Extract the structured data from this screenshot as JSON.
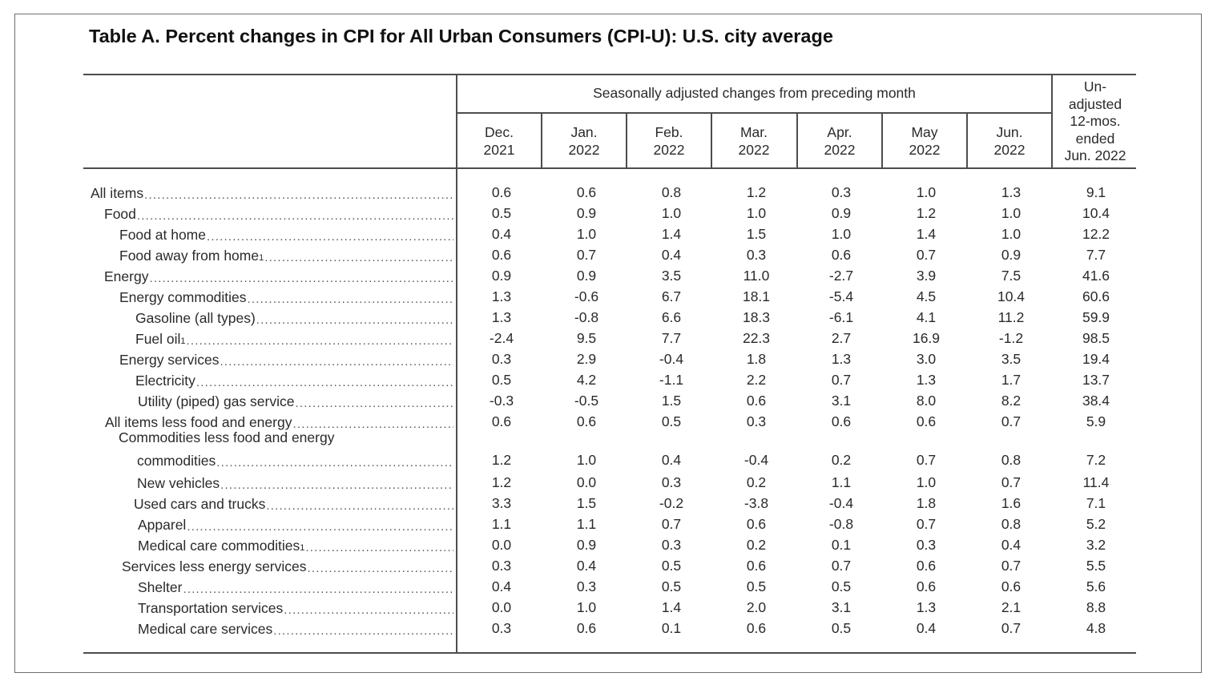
{
  "title": "Table A. Percent changes in CPI for All Urban Consumers (CPI-U): U.S. city average",
  "header": {
    "group_label": "Seasonally adjusted changes from preceding month",
    "columns": [
      {
        "line1": "Dec.",
        "line2": "2021"
      },
      {
        "line1": "Jan.",
        "line2": "2022"
      },
      {
        "line1": "Feb.",
        "line2": "2022"
      },
      {
        "line1": "Mar.",
        "line2": "2022"
      },
      {
        "line1": "Apr.",
        "line2": "2022"
      },
      {
        "line1": "May",
        "line2": "2022"
      },
      {
        "line1": "Jun.",
        "line2": "2022"
      }
    ],
    "last_column": [
      "Un-",
      "adjusted",
      "12-mos.",
      "ended",
      "Jun. 2022"
    ]
  },
  "rows": [
    {
      "label": "All items",
      "sup": "",
      "values": [
        "0.6",
        "0.6",
        "0.8",
        "1.2",
        "0.3",
        "1.0",
        "1.3",
        "9.1"
      ]
    },
    {
      "label": "Food",
      "sup": "",
      "values": [
        "0.5",
        "0.9",
        "1.0",
        "1.0",
        "0.9",
        "1.2",
        "1.0",
        "10.4"
      ]
    },
    {
      "label": "Food at home",
      "sup": "",
      "values": [
        "0.4",
        "1.0",
        "1.4",
        "1.5",
        "1.0",
        "1.4",
        "1.0",
        "12.2"
      ]
    },
    {
      "label": "Food away from home",
      "sup": "1",
      "values": [
        "0.6",
        "0.7",
        "0.4",
        "0.3",
        "0.6",
        "0.7",
        "0.9",
        "7.7"
      ]
    },
    {
      "label": "Energy",
      "sup": "",
      "values": [
        "0.9",
        "0.9",
        "3.5",
        "11.0",
        "-2.7",
        "3.9",
        "7.5",
        "41.6"
      ]
    },
    {
      "label": "Energy commodities",
      "sup": "",
      "values": [
        "1.3",
        "-0.6",
        "6.7",
        "18.1",
        "-5.4",
        "4.5",
        "10.4",
        "60.6"
      ]
    },
    {
      "label": "Gasoline (all types)",
      "sup": "",
      "values": [
        "1.3",
        "-0.8",
        "6.6",
        "18.3",
        "-6.1",
        "4.1",
        "11.2",
        "59.9"
      ]
    },
    {
      "label": "Fuel oil",
      "sup": "1",
      "values": [
        "-2.4",
        "9.5",
        "7.7",
        "22.3",
        "2.7",
        "16.9",
        "-1.2",
        "98.5"
      ]
    },
    {
      "label": "Energy services",
      "sup": "",
      "values": [
        "0.3",
        "2.9",
        "-0.4",
        "1.8",
        "1.3",
        "3.0",
        "3.5",
        "19.4"
      ]
    },
    {
      "label": "Electricity",
      "sup": "",
      "values": [
        "0.5",
        "4.2",
        "-1.1",
        "2.2",
        "0.7",
        "1.3",
        "1.7",
        "13.7"
      ]
    },
    {
      "label": "Utility (piped) gas service",
      "sup": "",
      "values": [
        "-0.3",
        "-0.5",
        "1.5",
        "0.6",
        "3.1",
        "8.0",
        "8.2",
        "38.4"
      ]
    },
    {
      "label": "All items less food and energy",
      "sup": "",
      "values": [
        "0.6",
        "0.6",
        "0.5",
        "0.3",
        "0.6",
        "0.6",
        "0.7",
        "5.9"
      ]
    },
    {
      "label_line1": "Commodities less food and energy",
      "label": "commodities",
      "sup": "",
      "values": [
        "1.2",
        "1.0",
        "0.4",
        "-0.4",
        "0.2",
        "0.7",
        "0.8",
        "7.2"
      ]
    },
    {
      "label": "New vehicles",
      "sup": "",
      "values": [
        "1.2",
        "0.0",
        "0.3",
        "0.2",
        "1.1",
        "1.0",
        "0.7",
        "11.4"
      ]
    },
    {
      "label": "Used cars and trucks",
      "sup": "",
      "values": [
        "3.3",
        "1.5",
        "-0.2",
        "-3.8",
        "-0.4",
        "1.8",
        "1.6",
        "7.1"
      ]
    },
    {
      "label": "Apparel",
      "sup": "",
      "values": [
        "1.1",
        "1.1",
        "0.7",
        "0.6",
        "-0.8",
        "0.7",
        "0.8",
        "5.2"
      ]
    },
    {
      "label": "Medical care commodities",
      "sup": "1",
      "values": [
        "0.0",
        "0.9",
        "0.3",
        "0.2",
        "0.1",
        "0.3",
        "0.4",
        "3.2"
      ]
    },
    {
      "label": "Services less energy services",
      "sup": "",
      "values": [
        "0.3",
        "0.4",
        "0.5",
        "0.6",
        "0.7",
        "0.6",
        "0.7",
        "5.5"
      ]
    },
    {
      "label": "Shelter",
      "sup": "",
      "values": [
        "0.4",
        "0.3",
        "0.5",
        "0.5",
        "0.5",
        "0.6",
        "0.6",
        "5.6"
      ]
    },
    {
      "label": "Transportation services",
      "sup": "",
      "values": [
        "0.0",
        "1.0",
        "1.4",
        "2.0",
        "3.1",
        "1.3",
        "2.1",
        "8.8"
      ]
    },
    {
      "label": "Medical care services",
      "sup": "",
      "values": [
        "0.3",
        "0.6",
        "0.1",
        "0.6",
        "0.5",
        "0.4",
        "0.7",
        "4.8"
      ]
    }
  ]
}
